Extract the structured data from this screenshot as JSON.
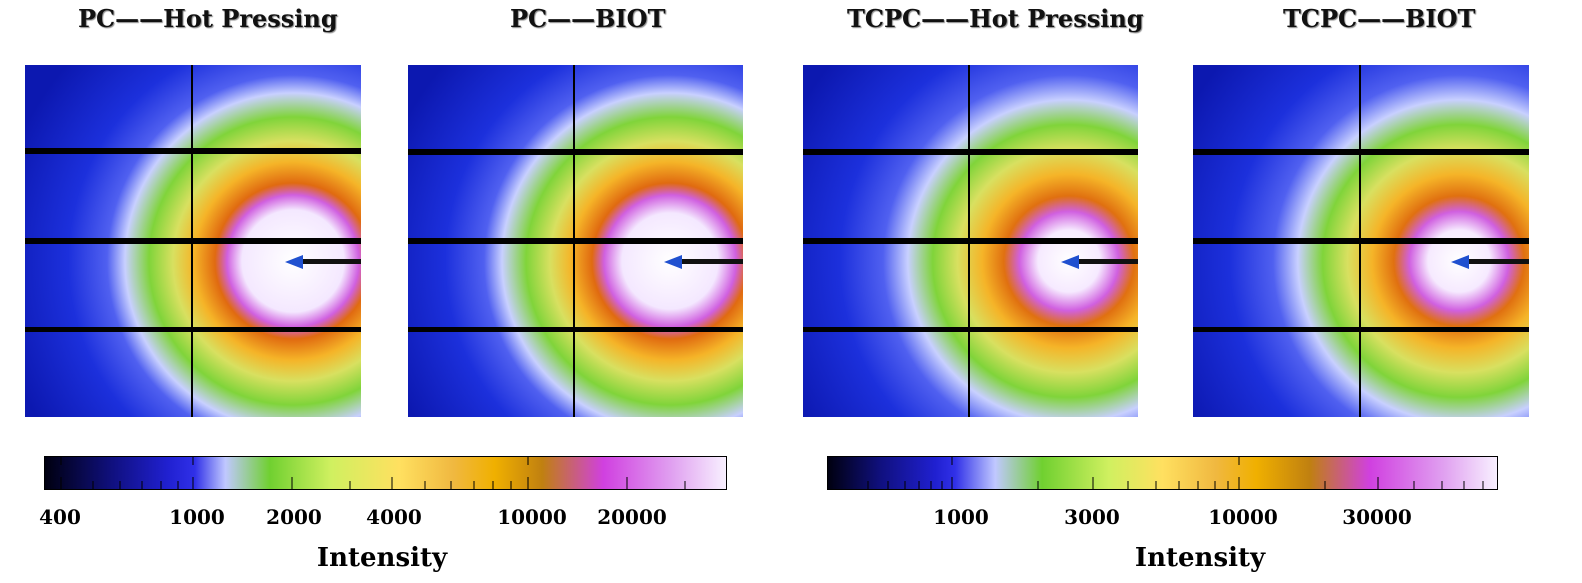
{
  "panels": [
    {
      "title": "PC——Hot Pressing"
    },
    {
      "title": "PC——BIOT"
    },
    {
      "title": "TCPC——Hot Pressing"
    },
    {
      "title": "TCPC——BIOT"
    }
  ],
  "colorbar_left": {
    "title": "Intensity",
    "ticks": [
      "400",
      "1000",
      "2000",
      "4000",
      "10000",
      "20000"
    ]
  },
  "colorbar_right": {
    "title": "Intensity",
    "ticks": [
      "1000",
      "3000",
      "10000",
      "30000"
    ]
  },
  "colors": {
    "background_blue": "#1a2fd8",
    "ring_green": "#7fd43a",
    "ring_orange": "#f0b020",
    "center_magenta": "#d060e0",
    "center_white": "#ffffff",
    "detector_gap": "#000000"
  }
}
